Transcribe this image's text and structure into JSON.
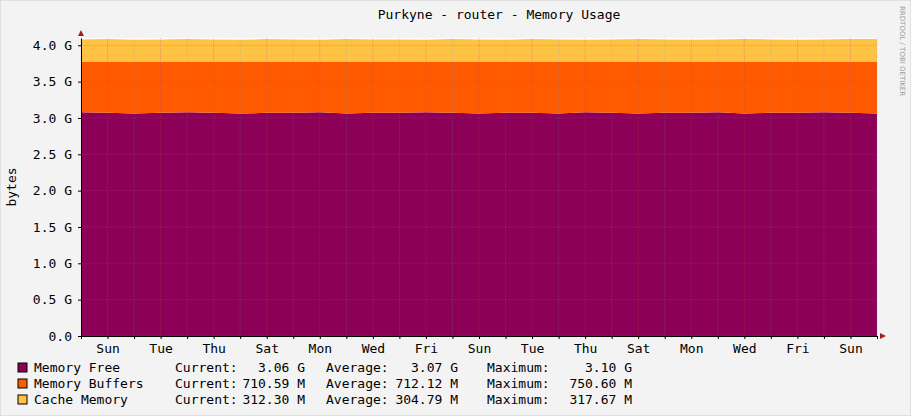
{
  "chart_data": {
    "type": "area",
    "stacked": true,
    "grid": true,
    "title": "Purkyne - router  - Memory Usage",
    "y_label": "bytes",
    "annotations": [
      "RRDTOOL / TOBI OETIKER"
    ],
    "categories": [
      null,
      "Sun",
      null,
      "Tue",
      null,
      "Thu",
      null,
      "Sat",
      null,
      "Mon",
      null,
      "Wed",
      null,
      "Fri",
      null,
      "Sun",
      null,
      "Tue",
      null,
      "Thu",
      null,
      "Sat",
      null,
      "Mon",
      null,
      "Wed",
      null,
      "Fri",
      null,
      "Sun",
      null
    ],
    "ylim": [
      0,
      4100000000
    ],
    "yticks": [
      {
        "value": 0,
        "label": "0.0"
      },
      {
        "value": 500000000,
        "label": "0.5 G"
      },
      {
        "value": 1000000000,
        "label": "1.0 G"
      },
      {
        "value": 1500000000,
        "label": "1.5 G"
      },
      {
        "value": 2000000000,
        "label": "2.0 G"
      },
      {
        "value": 2500000000,
        "label": "2.5 G"
      },
      {
        "value": 3000000000,
        "label": "3.0 G"
      },
      {
        "value": 3500000000,
        "label": "3.5 G"
      },
      {
        "value": 4000000000,
        "label": "4.0 G"
      }
    ],
    "series": [
      {
        "name": "Memory Free",
        "color": "#8c0058",
        "values": [
          3080000000,
          3070000000,
          3060000000,
          3070000000,
          3080000000,
          3070000000,
          3060000000,
          3070000000,
          3070000000,
          3080000000,
          3060000000,
          3070000000,
          3070000000,
          3080000000,
          3070000000,
          3060000000,
          3070000000,
          3070000000,
          3060000000,
          3080000000,
          3070000000,
          3060000000,
          3070000000,
          3070000000,
          3080000000,
          3060000000,
          3070000000,
          3070000000,
          3080000000,
          3070000000,
          3060000000
        ],
        "stats": [
          {
            "label": "Current:",
            "value": "3.06 G"
          },
          {
            "label": "Average:",
            "value": "3.07 G"
          },
          {
            "label": "Maximum:",
            "value": "3.10 G"
          }
        ]
      },
      {
        "name": "Memory Buffers",
        "color": "#ff5a00",
        "values": [
          695000000,
          705000000,
          715000000,
          705000000,
          695000000,
          705000000,
          715000000,
          705000000,
          705000000,
          695000000,
          715000000,
          705000000,
          705000000,
          695000000,
          705000000,
          715000000,
          705000000,
          705000000,
          715000000,
          695000000,
          705000000,
          715000000,
          705000000,
          705000000,
          695000000,
          715000000,
          705000000,
          705000000,
          695000000,
          705000000,
          715000000
        ],
        "stats": [
          {
            "label": "Current:",
            "value": "710.59 M"
          },
          {
            "label": "Average:",
            "value": "712.12 M"
          },
          {
            "label": "Maximum:",
            "value": "750.60 M"
          }
        ]
      },
      {
        "name": "Cache Memory",
        "color": "#ffc242",
        "values": [
          305000000,
          310000000,
          300000000,
          305000000,
          310000000,
          305000000,
          300000000,
          310000000,
          305000000,
          300000000,
          310000000,
          305000000,
          305000000,
          300000000,
          310000000,
          305000000,
          300000000,
          310000000,
          305000000,
          300000000,
          305000000,
          310000000,
          305000000,
          300000000,
          305000000,
          310000000,
          305000000,
          300000000,
          305000000,
          310000000,
          312000000
        ],
        "stats": [
          {
            "label": "Current:",
            "value": "312.30 M"
          },
          {
            "label": "Average:",
            "value": "304.79 M"
          },
          {
            "label": "Maximum:",
            "value": "317.67 M"
          }
        ]
      }
    ]
  }
}
